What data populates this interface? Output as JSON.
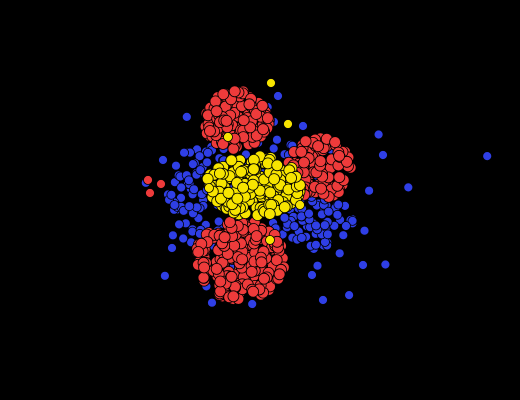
{
  "scene": {
    "background": "#000000",
    "particle_types": [
      {
        "name": "red",
        "color": "#ee3b3b"
      },
      {
        "name": "blue",
        "color": "#2f3fe6"
      },
      {
        "name": "yellow",
        "color": "#f7e400"
      }
    ]
  }
}
